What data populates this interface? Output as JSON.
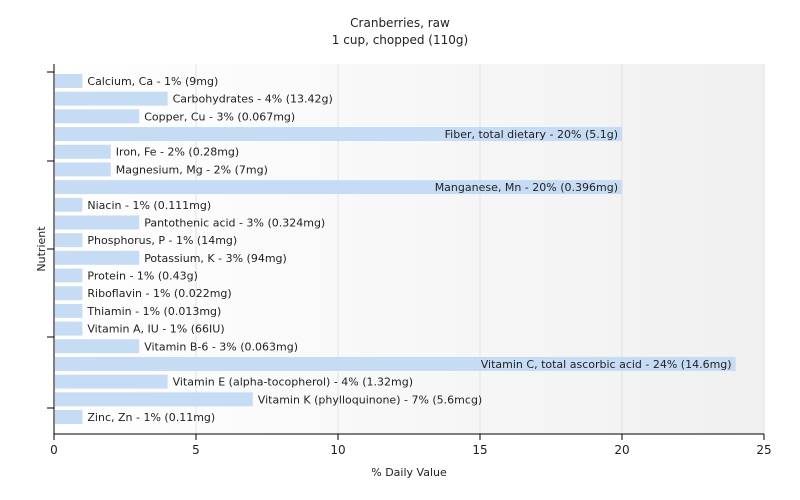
{
  "chart_data": {
    "type": "bar",
    "orientation": "horizontal",
    "title": "Cranberries, raw",
    "subtitle": "1 cup, chopped (110g)",
    "xlabel": "% Daily Value",
    "ylabel": "Nutrient",
    "xlim": [
      0,
      25
    ],
    "xticks": [
      0,
      5,
      10,
      15,
      20,
      25
    ],
    "grid": true,
    "bar_color": "#c6dcf5",
    "categories": [
      "Calcium, Ca",
      "Carbohydrates",
      "Copper, Cu",
      "Fiber, total dietary",
      "Iron, Fe",
      "Magnesium, Mg",
      "Manganese, Mn",
      "Niacin",
      "Pantothenic acid",
      "Phosphorus, P",
      "Potassium, K",
      "Protein",
      "Riboflavin",
      "Thiamin",
      "Vitamin A, IU",
      "Vitamin B-6",
      "Vitamin C, total ascorbic acid",
      "Vitamin E (alpha-tocopherol)",
      "Vitamin K (phylloquinone)",
      "Zinc, Zn"
    ],
    "values": [
      1,
      4,
      3,
      20,
      2,
      2,
      20,
      1,
      3,
      1,
      3,
      1,
      1,
      1,
      1,
      3,
      24,
      4,
      7,
      1
    ],
    "labels": [
      "Calcium, Ca - 1% (9mg)",
      "Carbohydrates - 4% (13.42g)",
      "Copper, Cu - 3% (0.067mg)",
      "Fiber, total dietary - 20% (5.1g)",
      "Iron, Fe - 2% (0.28mg)",
      "Magnesium, Mg - 2% (7mg)",
      "Manganese, Mn - 20% (0.396mg)",
      "Niacin - 1% (0.111mg)",
      "Pantothenic acid - 3% (0.324mg)",
      "Phosphorus, P - 1% (14mg)",
      "Potassium, K - 3% (94mg)",
      "Protein - 1% (0.43g)",
      "Riboflavin - 1% (0.022mg)",
      "Thiamin - 1% (0.013mg)",
      "Vitamin A, IU - 1% (66IU)",
      "Vitamin B-6 - 3% (0.063mg)",
      "Vitamin C, total ascorbic acid - 24% (14.6mg)",
      "Vitamin E (alpha-tocopherol) - 4% (1.32mg)",
      "Vitamin K (phylloquinone) - 7% (5.6mcg)",
      "Zinc, Zn - 1% (0.11mg)"
    ]
  }
}
